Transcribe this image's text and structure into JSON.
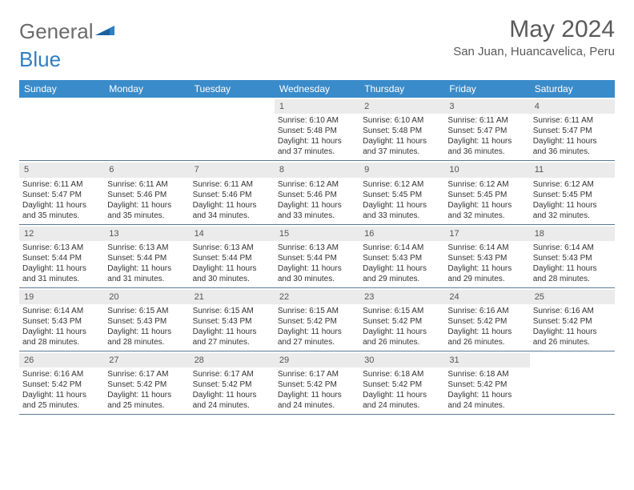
{
  "brand": {
    "part1": "General",
    "part2": "Blue"
  },
  "title": "May 2024",
  "location": "San Juan, Huancavelica, Peru",
  "colors": {
    "header_bg": "#3a8bc9",
    "header_text": "#ffffff",
    "daynum_bg": "#ebebeb",
    "border": "#5a7a95",
    "text": "#333333",
    "brand_gray": "#6b6b6b",
    "brand_blue": "#2f7fc2"
  },
  "day_names": [
    "Sunday",
    "Monday",
    "Tuesday",
    "Wednesday",
    "Thursday",
    "Friday",
    "Saturday"
  ],
  "weeks": [
    [
      {
        "empty": true
      },
      {
        "empty": true
      },
      {
        "empty": true
      },
      {
        "num": "1",
        "sunrise": "6:10 AM",
        "sunset": "5:48 PM",
        "daylight": "11 hours and 37 minutes."
      },
      {
        "num": "2",
        "sunrise": "6:10 AM",
        "sunset": "5:48 PM",
        "daylight": "11 hours and 37 minutes."
      },
      {
        "num": "3",
        "sunrise": "6:11 AM",
        "sunset": "5:47 PM",
        "daylight": "11 hours and 36 minutes."
      },
      {
        "num": "4",
        "sunrise": "6:11 AM",
        "sunset": "5:47 PM",
        "daylight": "11 hours and 36 minutes."
      }
    ],
    [
      {
        "num": "5",
        "sunrise": "6:11 AM",
        "sunset": "5:47 PM",
        "daylight": "11 hours and 35 minutes."
      },
      {
        "num": "6",
        "sunrise": "6:11 AM",
        "sunset": "5:46 PM",
        "daylight": "11 hours and 35 minutes."
      },
      {
        "num": "7",
        "sunrise": "6:11 AM",
        "sunset": "5:46 PM",
        "daylight": "11 hours and 34 minutes."
      },
      {
        "num": "8",
        "sunrise": "6:12 AM",
        "sunset": "5:46 PM",
        "daylight": "11 hours and 33 minutes."
      },
      {
        "num": "9",
        "sunrise": "6:12 AM",
        "sunset": "5:45 PM",
        "daylight": "11 hours and 33 minutes."
      },
      {
        "num": "10",
        "sunrise": "6:12 AM",
        "sunset": "5:45 PM",
        "daylight": "11 hours and 32 minutes."
      },
      {
        "num": "11",
        "sunrise": "6:12 AM",
        "sunset": "5:45 PM",
        "daylight": "11 hours and 32 minutes."
      }
    ],
    [
      {
        "num": "12",
        "sunrise": "6:13 AM",
        "sunset": "5:44 PM",
        "daylight": "11 hours and 31 minutes."
      },
      {
        "num": "13",
        "sunrise": "6:13 AM",
        "sunset": "5:44 PM",
        "daylight": "11 hours and 31 minutes."
      },
      {
        "num": "14",
        "sunrise": "6:13 AM",
        "sunset": "5:44 PM",
        "daylight": "11 hours and 30 minutes."
      },
      {
        "num": "15",
        "sunrise": "6:13 AM",
        "sunset": "5:44 PM",
        "daylight": "11 hours and 30 minutes."
      },
      {
        "num": "16",
        "sunrise": "6:14 AM",
        "sunset": "5:43 PM",
        "daylight": "11 hours and 29 minutes."
      },
      {
        "num": "17",
        "sunrise": "6:14 AM",
        "sunset": "5:43 PM",
        "daylight": "11 hours and 29 minutes."
      },
      {
        "num": "18",
        "sunrise": "6:14 AM",
        "sunset": "5:43 PM",
        "daylight": "11 hours and 28 minutes."
      }
    ],
    [
      {
        "num": "19",
        "sunrise": "6:14 AM",
        "sunset": "5:43 PM",
        "daylight": "11 hours and 28 minutes."
      },
      {
        "num": "20",
        "sunrise": "6:15 AM",
        "sunset": "5:43 PM",
        "daylight": "11 hours and 28 minutes."
      },
      {
        "num": "21",
        "sunrise": "6:15 AM",
        "sunset": "5:43 PM",
        "daylight": "11 hours and 27 minutes."
      },
      {
        "num": "22",
        "sunrise": "6:15 AM",
        "sunset": "5:42 PM",
        "daylight": "11 hours and 27 minutes."
      },
      {
        "num": "23",
        "sunrise": "6:15 AM",
        "sunset": "5:42 PM",
        "daylight": "11 hours and 26 minutes."
      },
      {
        "num": "24",
        "sunrise": "6:16 AM",
        "sunset": "5:42 PM",
        "daylight": "11 hours and 26 minutes."
      },
      {
        "num": "25",
        "sunrise": "6:16 AM",
        "sunset": "5:42 PM",
        "daylight": "11 hours and 26 minutes."
      }
    ],
    [
      {
        "num": "26",
        "sunrise": "6:16 AM",
        "sunset": "5:42 PM",
        "daylight": "11 hours and 25 minutes."
      },
      {
        "num": "27",
        "sunrise": "6:17 AM",
        "sunset": "5:42 PM",
        "daylight": "11 hours and 25 minutes."
      },
      {
        "num": "28",
        "sunrise": "6:17 AM",
        "sunset": "5:42 PM",
        "daylight": "11 hours and 24 minutes."
      },
      {
        "num": "29",
        "sunrise": "6:17 AM",
        "sunset": "5:42 PM",
        "daylight": "11 hours and 24 minutes."
      },
      {
        "num": "30",
        "sunrise": "6:18 AM",
        "sunset": "5:42 PM",
        "daylight": "11 hours and 24 minutes."
      },
      {
        "num": "31",
        "sunrise": "6:18 AM",
        "sunset": "5:42 PM",
        "daylight": "11 hours and 24 minutes."
      },
      {
        "empty": true
      }
    ]
  ],
  "labels": {
    "sunrise": "Sunrise:",
    "sunset": "Sunset:",
    "daylight": "Daylight:"
  }
}
